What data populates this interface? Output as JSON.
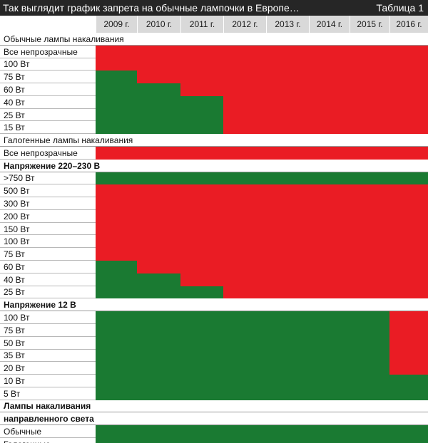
{
  "header": {
    "title": "Так выглядит график запрета на обычные лампочки в Европе…",
    "table_label": "Таблица 1"
  },
  "years": [
    "2009 г.",
    "2010 г.",
    "2011 г.",
    "2012 г.",
    "2013 г.",
    "2014 г.",
    "2015 г.",
    "2016 г."
  ],
  "status_legend": {
    "banned": "#ea1c24",
    "allowed": "#1a7a32"
  },
  "rows": [
    {
      "kind": "section",
      "label": "Обычные лампы накаливания",
      "bold": false
    },
    {
      "kind": "data",
      "label": "Все непрозрачные",
      "cells": "RRRRRRRR"
    },
    {
      "kind": "data",
      "label": "100 Вт",
      "cells": "RRRRRRRR"
    },
    {
      "kind": "data",
      "label": "75 Вт",
      "cells": "GRRRRRRR"
    },
    {
      "kind": "data",
      "label": "60 Вт",
      "cells": "GGRRRRRR"
    },
    {
      "kind": "data",
      "label": "40 Вт",
      "cells": "GGGRRRRR"
    },
    {
      "kind": "data",
      "label": "25 Вт",
      "cells": "GGGRRRRR"
    },
    {
      "kind": "data",
      "label": "15 Вт",
      "cells": "GGGRRRRR"
    },
    {
      "kind": "section",
      "label": "Галогенные лампы накаливания",
      "bold": false
    },
    {
      "kind": "data",
      "label": "Все непрозрачные",
      "cells": "RRRRRRRR"
    },
    {
      "kind": "section",
      "label": "Напряжение 220–230 В",
      "bold": true
    },
    {
      "kind": "data",
      "label": ">750 Вт",
      "cells": "GGGGGGGG"
    },
    {
      "kind": "data",
      "label": "500 Вт",
      "cells": "RRRRRRRR"
    },
    {
      "kind": "data",
      "label": "300 Вт",
      "cells": "RRRRRRRR"
    },
    {
      "kind": "data",
      "label": "200 Вт",
      "cells": "RRRRRRRR"
    },
    {
      "kind": "data",
      "label": "150 Вт",
      "cells": "RRRRRRRR"
    },
    {
      "kind": "data",
      "label": "100 Вт",
      "cells": "RRRRRRRR"
    },
    {
      "kind": "data",
      "label": "75 Вт",
      "cells": "RRRRRRRR"
    },
    {
      "kind": "data",
      "label": "60 Вт",
      "cells": "GRRRRRRR"
    },
    {
      "kind": "data",
      "label": "40 Вт",
      "cells": "GGRRRRRR"
    },
    {
      "kind": "data",
      "label": "25 Вт",
      "cells": "GGGRRRRR"
    },
    {
      "kind": "section",
      "label": "Напряжение 12 В",
      "bold": true
    },
    {
      "kind": "data",
      "label": "100 Вт",
      "cells": "GGGGGGGR"
    },
    {
      "kind": "data",
      "label": "75 Вт",
      "cells": "GGGGGGGR"
    },
    {
      "kind": "data",
      "label": "50 Вт",
      "cells": "GGGGGGGR"
    },
    {
      "kind": "data",
      "label": "35 Вт",
      "cells": "GGGGGGGR"
    },
    {
      "kind": "data",
      "label": "20 Вт",
      "cells": "GGGGGGGR"
    },
    {
      "kind": "data",
      "label": "10 Вт",
      "cells": "GGGGGGGG"
    },
    {
      "kind": "data",
      "label": "5 Вт",
      "cells": "GGGGGGGG"
    },
    {
      "kind": "section",
      "label": "Лампы накаливания",
      "bold": true
    },
    {
      "kind": "section",
      "label": "направленного света",
      "bold": true
    },
    {
      "kind": "data",
      "label": "Обычные",
      "cells": "GGGGGGGG"
    },
    {
      "kind": "data",
      "label": "Галогенные",
      "cells": "GGGGGGGG"
    }
  ]
}
